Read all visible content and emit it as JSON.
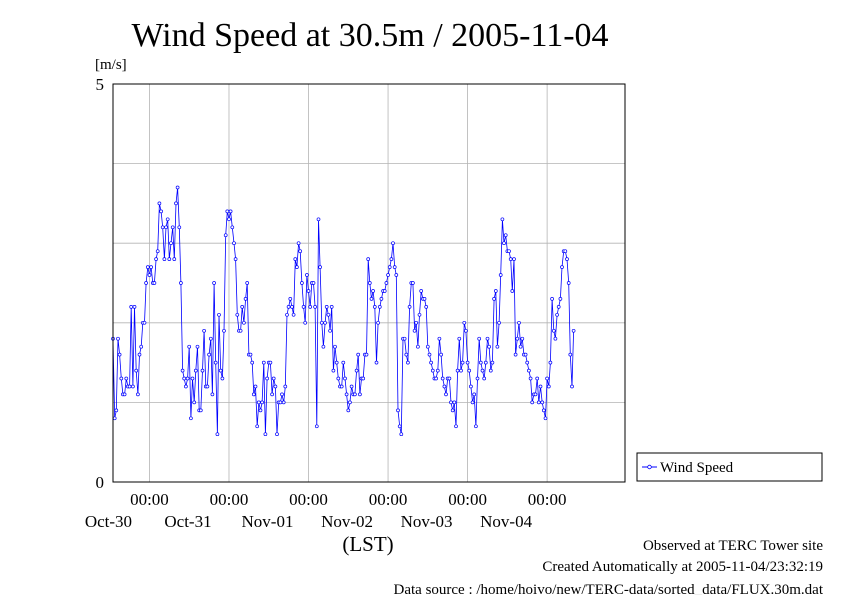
{
  "title": "Wind Speed at 30.5m / 2005-11-04",
  "footer": {
    "line1": "Observed at TERC Tower site",
    "line2": "Created Automatically at 2005-11-04/23:32:19",
    "line3": "Data source : /home/hoivo/new/TERC-data/sorted_data/FLUX.30m.dat"
  },
  "colors": {
    "series": "#0000ff",
    "grid": "#b4b4b4",
    "axis": "#000000"
  },
  "chart_data": {
    "type": "line",
    "title": "Wind Speed at 30.5m / 2005-11-04",
    "ylabel": "[m/s]",
    "xlabel": "(LST)",
    "ylim": [
      0,
      5
    ],
    "xlim_days": [
      "2005-10-29T13:00",
      "2005-11-04T23:30"
    ],
    "y_ticks": [
      "0",
      "5"
    ],
    "x_ticks": [
      {
        "time": "00:00",
        "date": "Oct-30"
      },
      {
        "time": "00:00",
        "date": "Oct-31"
      },
      {
        "time": "00:00",
        "date": "Nov-01"
      },
      {
        "time": "00:00",
        "date": "Nov-02"
      },
      {
        "time": "00:00",
        "date": "Nov-03"
      },
      {
        "time": "00:00",
        "date": "Nov-04"
      }
    ],
    "grid": true,
    "legend": {
      "position": "right",
      "entries": [
        "Wind Speed"
      ]
    },
    "x_interval_hours": 0.5,
    "series": [
      {
        "name": "Wind Speed",
        "start": "2005-10-29T13:00",
        "values": [
          1.8,
          0.8,
          0.9,
          1.8,
          1.6,
          1.3,
          1.1,
          1.1,
          1.3,
          1.2,
          1.2,
          2.2,
          1.2,
          2.2,
          1.4,
          1.1,
          1.6,
          1.7,
          2.0,
          2.0,
          2.5,
          2.7,
          2.6,
          2.7,
          2.5,
          2.5,
          2.8,
          2.9,
          3.5,
          3.4,
          3.2,
          2.8,
          3.2,
          3.3,
          2.8,
          3.0,
          3.2,
          2.8,
          3.5,
          3.7,
          3.2,
          2.5,
          1.4,
          1.3,
          1.2,
          1.3,
          1.7,
          0.8,
          1.3,
          1.0,
          1.4,
          1.7,
          0.9,
          0.9,
          1.4,
          1.9,
          1.2,
          1.2,
          1.6,
          1.8,
          1.1,
          2.5,
          1.5,
          0.6,
          2.1,
          1.4,
          1.3,
          1.9,
          3.1,
          3.4,
          3.3,
          3.4,
          3.2,
          3.0,
          2.8,
          2.1,
          1.9,
          1.9,
          2.2,
          2.0,
          2.3,
          2.5,
          1.6,
          1.6,
          1.5,
          1.1,
          1.2,
          0.7,
          1.0,
          0.9,
          1.0,
          1.5,
          0.6,
          1.3,
          1.5,
          1.5,
          1.1,
          1.3,
          1.2,
          0.6,
          1.0,
          1.0,
          1.1,
          1.0,
          1.2,
          2.1,
          2.2,
          2.3,
          2.2,
          2.1,
          2.8,
          2.7,
          3.0,
          2.9,
          2.5,
          2.2,
          2.0,
          2.6,
          2.4,
          2.2,
          2.5,
          2.5,
          2.2,
          0.7,
          3.3,
          2.7,
          2.0,
          1.7,
          2.0,
          2.2,
          2.1,
          1.9,
          2.2,
          1.4,
          1.7,
          1.5,
          1.3,
          1.2,
          1.2,
          1.5,
          1.3,
          1.1,
          0.9,
          1.0,
          1.2,
          1.1,
          1.1,
          1.4,
          1.6,
          1.1,
          1.3,
          1.3,
          1.6,
          1.6,
          2.8,
          2.5,
          2.3,
          2.4,
          2.2,
          1.5,
          2.0,
          2.2,
          2.3,
          2.4,
          2.4,
          2.5,
          2.6,
          2.7,
          2.8,
          3.0,
          2.7,
          2.6,
          0.9,
          0.7,
          0.6,
          1.8,
          1.8,
          1.6,
          1.5,
          2.2,
          2.5,
          2.5,
          1.9,
          2.0,
          1.7,
          2.1,
          2.4,
          2.3,
          2.3,
          2.2,
          1.7,
          1.6,
          1.5,
          1.4,
          1.3,
          1.3,
          1.4,
          1.8,
          1.6,
          1.3,
          1.2,
          1.1,
          1.3,
          1.3,
          1.0,
          0.9,
          1.0,
          0.7,
          1.4,
          1.8,
          1.4,
          1.5,
          2.0,
          1.9,
          1.5,
          1.4,
          1.2,
          1.0,
          1.1,
          0.7,
          1.3,
          1.8,
          1.5,
          1.4,
          1.3,
          1.5,
          1.8,
          1.7,
          1.4,
          1.5,
          2.3,
          2.4,
          1.7,
          2.0,
          2.6,
          3.3,
          3.0,
          3.1,
          2.9,
          2.9,
          2.8,
          2.4,
          2.8,
          1.6,
          1.8,
          2.0,
          1.7,
          1.8,
          1.6,
          1.6,
          1.5,
          1.4,
          1.3,
          1.0,
          1.1,
          1.1,
          1.3,
          1.0,
          1.2,
          1.0,
          0.9,
          0.8,
          1.3,
          1.2,
          1.5,
          2.3,
          1.9,
          1.8,
          2.1,
          2.2,
          2.3,
          2.7,
          2.9,
          2.9,
          2.8,
          2.5,
          1.6,
          1.2,
          1.9
        ]
      }
    ]
  }
}
